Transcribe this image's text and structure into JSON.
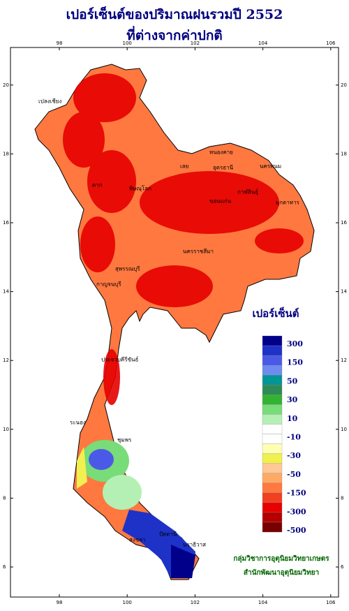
{
  "title": [
    "เปอร์เซ็นต์ของปริมาณฝนรวมปี 2552",
    "ที่ต่างจากค่าปกติ"
  ],
  "axes": {
    "lon_ticks": [
      98,
      100,
      102,
      104,
      106
    ],
    "lat_ticks": [
      6,
      8,
      10,
      12,
      14,
      16,
      18,
      20
    ]
  },
  "legend": {
    "title": "เปอร์เซ็นต์",
    "labels": [
      300,
      150,
      50,
      30,
      10,
      -10,
      -30,
      -50,
      -150,
      -300,
      -500
    ],
    "colors": [
      "#00008b",
      "#1e32c8",
      "#4a5ae6",
      "#6e8cf0",
      "#009696",
      "#2e8b57",
      "#32b432",
      "#78dc78",
      "#b4f0b4",
      "#ffffff",
      "#ffffff",
      "#ffffb4",
      "#f0f050",
      "#ffc896",
      "#ffaa64",
      "#ff7840",
      "#f04020",
      "#e60000",
      "#b40000",
      "#780000"
    ]
  },
  "places": [
    "หนองคาย",
    "อุดรธานี",
    "นครพนม",
    "เลย",
    "กาฬสินธุ์",
    "มุกดาหาร",
    "ขอนแก่น",
    "นครราชสีมา",
    "พิษณุโลก",
    "ตาก",
    "กาญจนบุรี",
    "สุพรรณบุรี",
    "ประจวบคีรีขันธ์",
    "ระนอง",
    "ชุมพร",
    "สงขลา",
    "ปัตตานี",
    "นราธิวาส",
    "เปลงเชียง"
  ],
  "credits": [
    "กลุ่มวิชาการอุตุนิยมวิทยาเกษตร",
    "สำนักพัฒนาอุตุนิยมวิทยา"
  ]
}
